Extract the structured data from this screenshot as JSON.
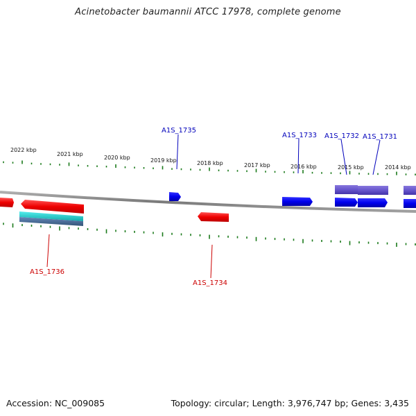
{
  "title": "Acinetobacter baumannii ATCC 17978, complete genome",
  "footer": {
    "accession": "Accession: NC_009085",
    "summary": "Topology: circular; Length: 3,976,747 bp; Genes: 3,435"
  },
  "colors": {
    "forward_gene": "#0000ee",
    "reverse_gene": "#ee0000",
    "tick": "#1a7a1a",
    "backbone": "#808080",
    "rna_feature": "#22cccc",
    "cds_forward": "#6655cc",
    "forward_label": "#0000bb",
    "reverse_label": "#cc0000"
  },
  "ruler_labels": [
    "2022 kbp",
    "2021 kbp",
    "2020 kbp",
    "2019 kbp",
    "2018 kbp",
    "2017 kbp",
    "2016 kbp",
    "2015 kbp",
    "2014 kbp"
  ],
  "gene_labels": {
    "forward": [
      "A1S_1735",
      "A1S_1733",
      "A1S_1732",
      "A1S_1731"
    ],
    "reverse": [
      "A1S_1736",
      "A1S_1734"
    ]
  }
}
